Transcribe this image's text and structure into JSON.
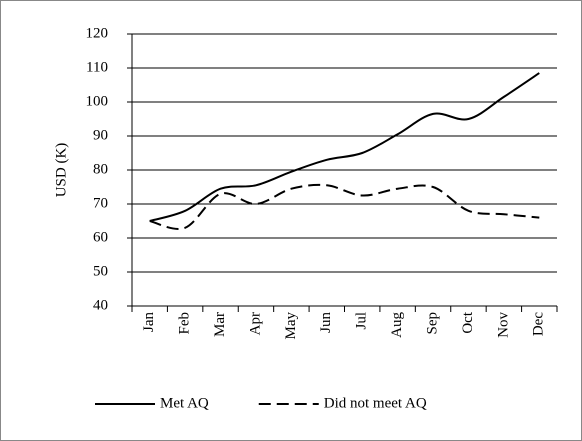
{
  "chart_data": {
    "type": "line",
    "y_label": "USD (K)",
    "categories": [
      "Jan",
      "Feb",
      "Mar",
      "Apr",
      "May",
      "Jun",
      "Jul",
      "Aug",
      "Sep",
      "Oct",
      "Nov",
      "Dec"
    ],
    "series": [
      {
        "name": "Met AQ",
        "color": "#000000",
        "dash": "solid",
        "values": [
          65,
          68,
          74.5,
          75.5,
          79.5,
          83,
          85,
          90.5,
          96.5,
          95,
          101.5,
          108.5
        ]
      },
      {
        "name": "Did not meet AQ",
        "color": "#000000",
        "dash": "dashed",
        "values": [
          65,
          63,
          73,
          70,
          74.5,
          75.5,
          72.5,
          74.5,
          75,
          68,
          67,
          66
        ]
      }
    ],
    "ylim": [
      40,
      120
    ],
    "yticks": [
      40,
      50,
      60,
      70,
      80,
      90,
      100,
      110,
      120
    ],
    "legend": "bottom"
  }
}
